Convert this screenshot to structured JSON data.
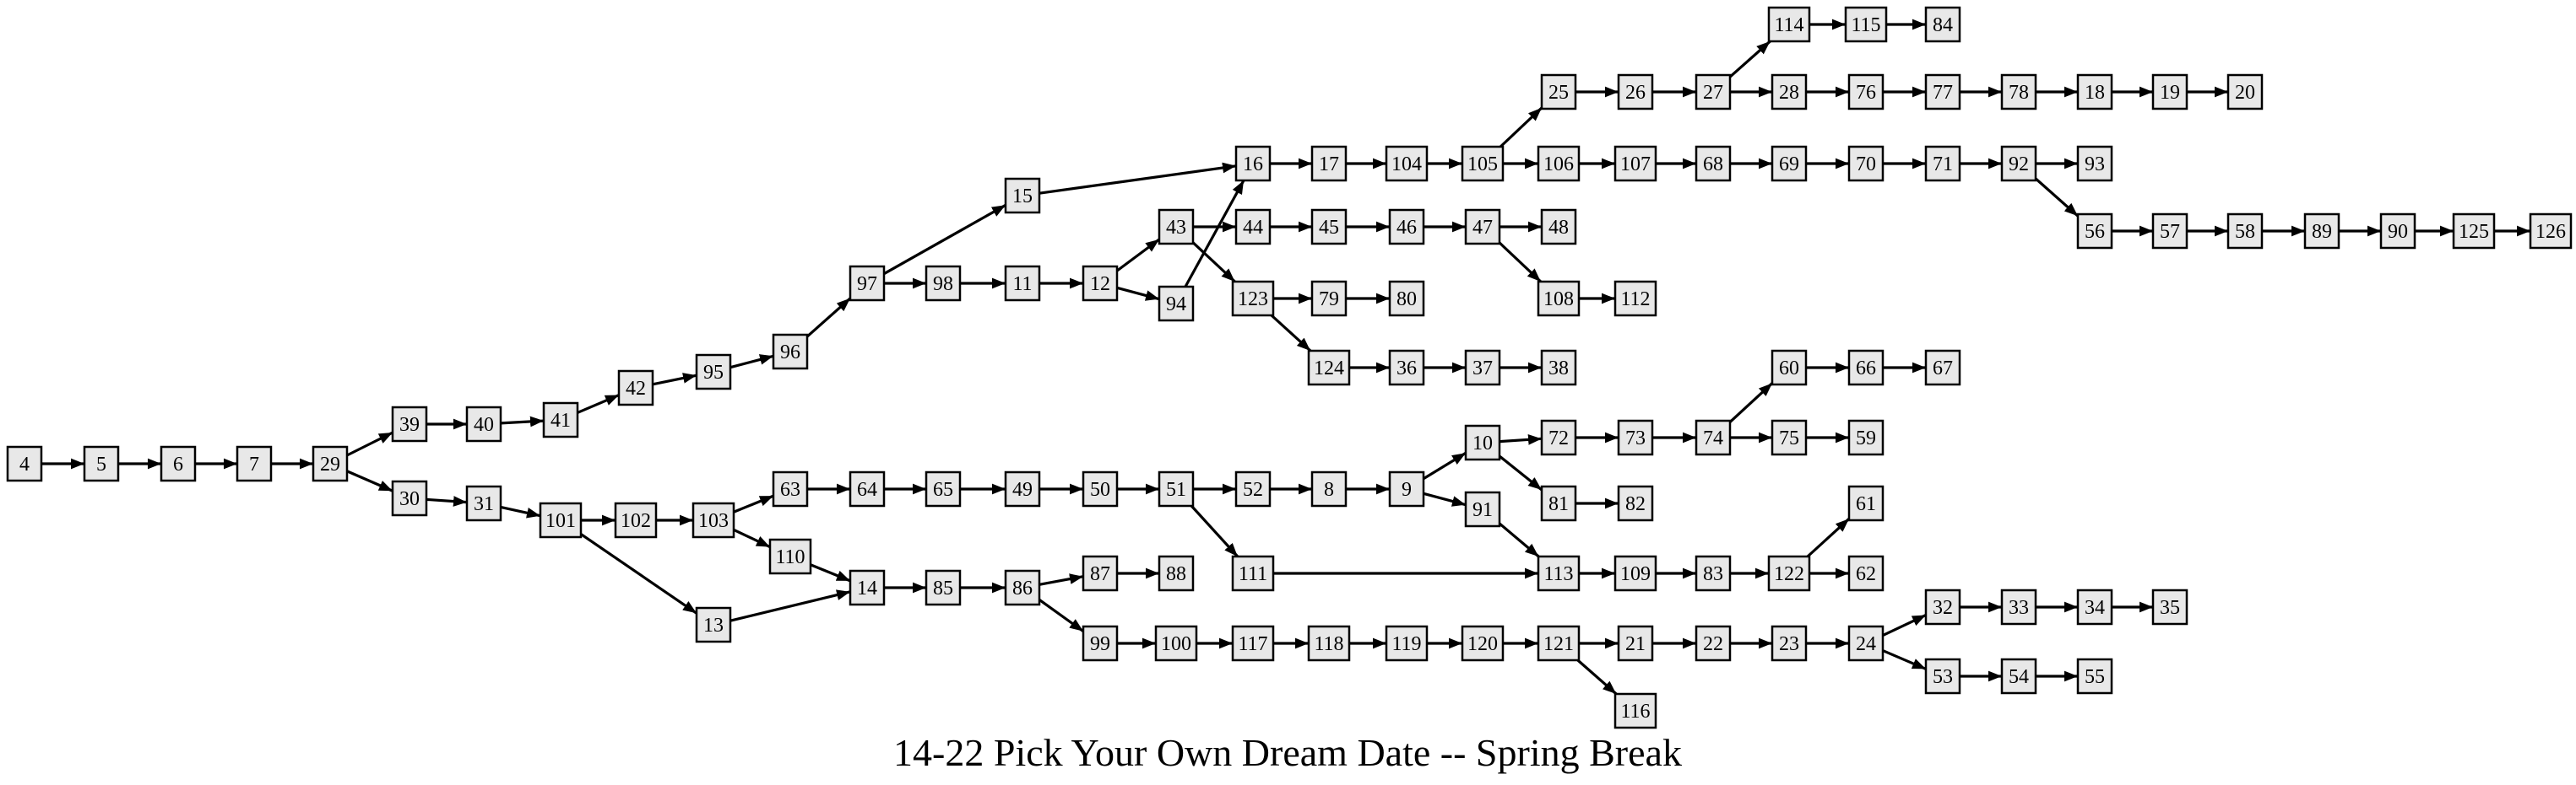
{
  "title": "14-22 Pick Your Own Dream Date -- Spring Break",
  "nodes": [
    4,
    5,
    6,
    7,
    29,
    39,
    40,
    41,
    42,
    95,
    96,
    97,
    15,
    98,
    11,
    12,
    43,
    94,
    16,
    17,
    104,
    105,
    25,
    26,
    27,
    114,
    115,
    84,
    28,
    76,
    77,
    78,
    18,
    19,
    20,
    106,
    107,
    68,
    69,
    70,
    71,
    92,
    93,
    56,
    57,
    58,
    89,
    90,
    125,
    126,
    44,
    45,
    46,
    47,
    48,
    108,
    112,
    123,
    79,
    80,
    124,
    36,
    37,
    38,
    30,
    31,
    101,
    102,
    103,
    63,
    64,
    65,
    49,
    50,
    51,
    52,
    8,
    9,
    10,
    72,
    73,
    74,
    60,
    66,
    67,
    75,
    59,
    81,
    82,
    91,
    113,
    109,
    83,
    122,
    61,
    62,
    111,
    110,
    13,
    14,
    85,
    86,
    87,
    88,
    99,
    100,
    117,
    118,
    119,
    120,
    121,
    21,
    22,
    23,
    24,
    32,
    33,
    34,
    35,
    53,
    54,
    55,
    116
  ],
  "edges": [
    [
      4,
      5
    ],
    [
      5,
      6
    ],
    [
      6,
      7
    ],
    [
      7,
      29
    ],
    [
      29,
      39
    ],
    [
      29,
      30
    ],
    [
      39,
      40
    ],
    [
      40,
      41
    ],
    [
      41,
      42
    ],
    [
      42,
      95
    ],
    [
      95,
      96
    ],
    [
      96,
      97
    ],
    [
      97,
      15
    ],
    [
      97,
      98
    ],
    [
      15,
      16
    ],
    [
      98,
      11
    ],
    [
      11,
      12
    ],
    [
      12,
      43
    ],
    [
      12,
      94
    ],
    [
      43,
      44
    ],
    [
      43,
      123
    ],
    [
      94,
      16
    ],
    [
      16,
      17
    ],
    [
      17,
      104
    ],
    [
      104,
      105
    ],
    [
      105,
      25
    ],
    [
      105,
      106
    ],
    [
      25,
      26
    ],
    [
      26,
      27
    ],
    [
      27,
      114
    ],
    [
      27,
      28
    ],
    [
      114,
      115
    ],
    [
      115,
      84
    ],
    [
      28,
      76
    ],
    [
      76,
      77
    ],
    [
      77,
      78
    ],
    [
      78,
      18
    ],
    [
      18,
      19
    ],
    [
      19,
      20
    ],
    [
      106,
      107
    ],
    [
      107,
      68
    ],
    [
      68,
      69
    ],
    [
      69,
      70
    ],
    [
      70,
      71
    ],
    [
      71,
      92
    ],
    [
      92,
      93
    ],
    [
      92,
      56
    ],
    [
      56,
      57
    ],
    [
      57,
      58
    ],
    [
      58,
      89
    ],
    [
      89,
      90
    ],
    [
      90,
      125
    ],
    [
      125,
      126
    ],
    [
      44,
      45
    ],
    [
      45,
      46
    ],
    [
      46,
      47
    ],
    [
      47,
      48
    ],
    [
      47,
      108
    ],
    [
      108,
      112
    ],
    [
      123,
      79
    ],
    [
      123,
      124
    ],
    [
      79,
      80
    ],
    [
      124,
      36
    ],
    [
      36,
      37
    ],
    [
      37,
      38
    ],
    [
      30,
      31
    ],
    [
      31,
      101
    ],
    [
      101,
      102
    ],
    [
      101,
      13
    ],
    [
      102,
      103
    ],
    [
      103,
      63
    ],
    [
      103,
      110
    ],
    [
      63,
      64
    ],
    [
      64,
      65
    ],
    [
      65,
      49
    ],
    [
      49,
      50
    ],
    [
      50,
      51
    ],
    [
      51,
      52
    ],
    [
      51,
      111
    ],
    [
      52,
      8
    ],
    [
      8,
      9
    ],
    [
      9,
      10
    ],
    [
      9,
      91
    ],
    [
      10,
      72
    ],
    [
      10,
      81
    ],
    [
      72,
      73
    ],
    [
      73,
      74
    ],
    [
      74,
      60
    ],
    [
      74,
      75
    ],
    [
      60,
      66
    ],
    [
      66,
      67
    ],
    [
      75,
      59
    ],
    [
      81,
      82
    ],
    [
      91,
      113
    ],
    [
      111,
      113
    ],
    [
      113,
      109
    ],
    [
      109,
      83
    ],
    [
      83,
      122
    ],
    [
      122,
      61
    ],
    [
      122,
      62
    ],
    [
      110,
      14
    ],
    [
      13,
      14
    ],
    [
      14,
      85
    ],
    [
      85,
      86
    ],
    [
      86,
      87
    ],
    [
      86,
      99
    ],
    [
      87,
      88
    ],
    [
      99,
      100
    ],
    [
      100,
      117
    ],
    [
      117,
      118
    ],
    [
      118,
      119
    ],
    [
      119,
      120
    ],
    [
      120,
      121
    ],
    [
      121,
      21
    ],
    [
      121,
      116
    ],
    [
      21,
      22
    ],
    [
      22,
      23
    ],
    [
      23,
      24
    ],
    [
      24,
      32
    ],
    [
      24,
      53
    ],
    [
      32,
      33
    ],
    [
      33,
      34
    ],
    [
      34,
      35
    ],
    [
      53,
      54
    ],
    [
      54,
      55
    ]
  ]
}
